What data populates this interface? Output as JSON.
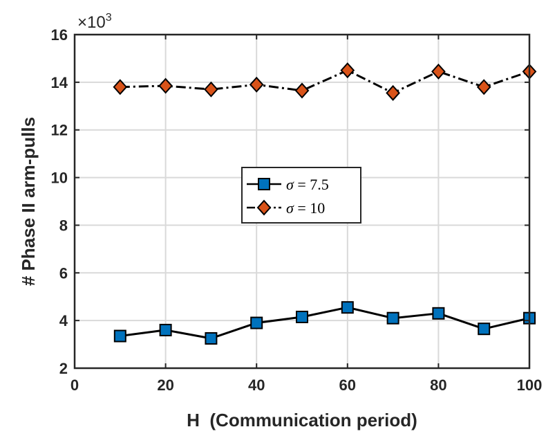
{
  "chart_data": {
    "type": "line",
    "title": "",
    "xlabel": "H  (Communication period)",
    "ylabel": "# Phase II arm-pulls",
    "xlim": [
      0,
      100
    ],
    "ylim": [
      2,
      16
    ],
    "xticks": [
      0,
      20,
      40,
      60,
      80,
      100
    ],
    "yticks": [
      2,
      4,
      6,
      8,
      10,
      12,
      14,
      16
    ],
    "xtick_labels": [
      "0",
      "20",
      "40",
      "60",
      "80",
      "100"
    ],
    "ytick_labels": [
      "2",
      "4",
      "6",
      "8",
      "10",
      "12",
      "14",
      "16"
    ],
    "y_multiplier_base": "×10",
    "y_multiplier_exp": "3",
    "grid": true,
    "legend_position": "center",
    "x": [
      10,
      20,
      30,
      40,
      50,
      60,
      70,
      80,
      90,
      100
    ],
    "series": [
      {
        "name_symbol": "σ",
        "name_rest": " = 7.5",
        "values": [
          3.35,
          3.6,
          3.25,
          3.9,
          4.15,
          4.55,
          4.1,
          4.3,
          3.65,
          4.1
        ],
        "marker": "square",
        "line_style": "solid",
        "color": "#0072BD",
        "line_color": "#000000"
      },
      {
        "name_symbol": "σ",
        "name_rest": " = 10",
        "values": [
          13.8,
          13.85,
          13.7,
          13.9,
          13.65,
          14.5,
          13.55,
          14.45,
          13.8,
          14.45
        ],
        "marker": "diamond",
        "line_style": "dashdot",
        "color": "#D95319",
        "line_color": "#000000"
      }
    ]
  }
}
